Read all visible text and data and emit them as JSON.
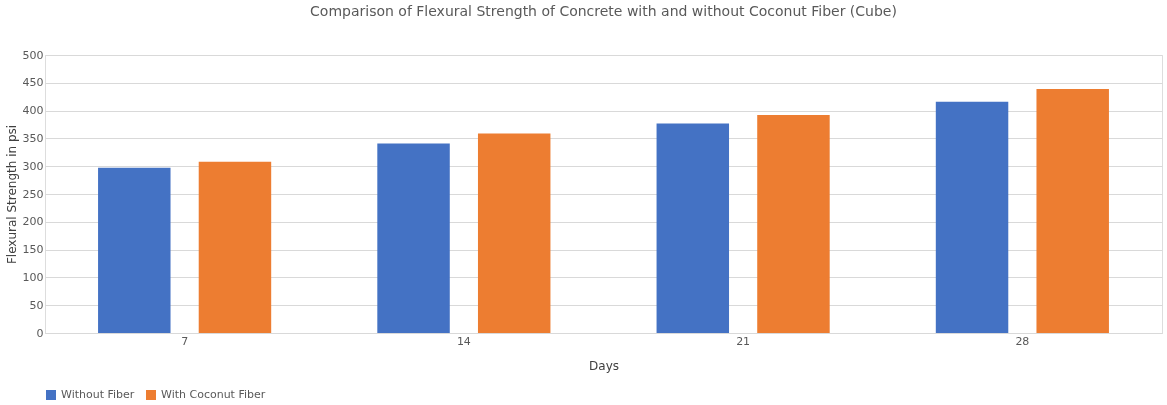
{
  "chart_data": {
    "type": "bar",
    "title": "Comparison of Flexural Strength of Concrete with and without  Coconut  Fiber (Cube)",
    "xlabel": "Days",
    "ylabel": "Flexural Strength in psi",
    "categories": [
      "7",
      "14",
      "21",
      "28"
    ],
    "series": [
      {
        "name": "Without Fiber",
        "color": "#4472c4",
        "values": [
          297,
          341,
          377,
          416
        ]
      },
      {
        "name": "With Coconut Fiber",
        "color": "#ed7d31",
        "values": [
          308,
          359,
          392,
          439
        ]
      }
    ],
    "ylim": [
      0,
      500
    ],
    "yticks": [
      0,
      50,
      100,
      150,
      200,
      250,
      300,
      350,
      400,
      450,
      500
    ],
    "grid": "y",
    "legend": "bottom"
  }
}
